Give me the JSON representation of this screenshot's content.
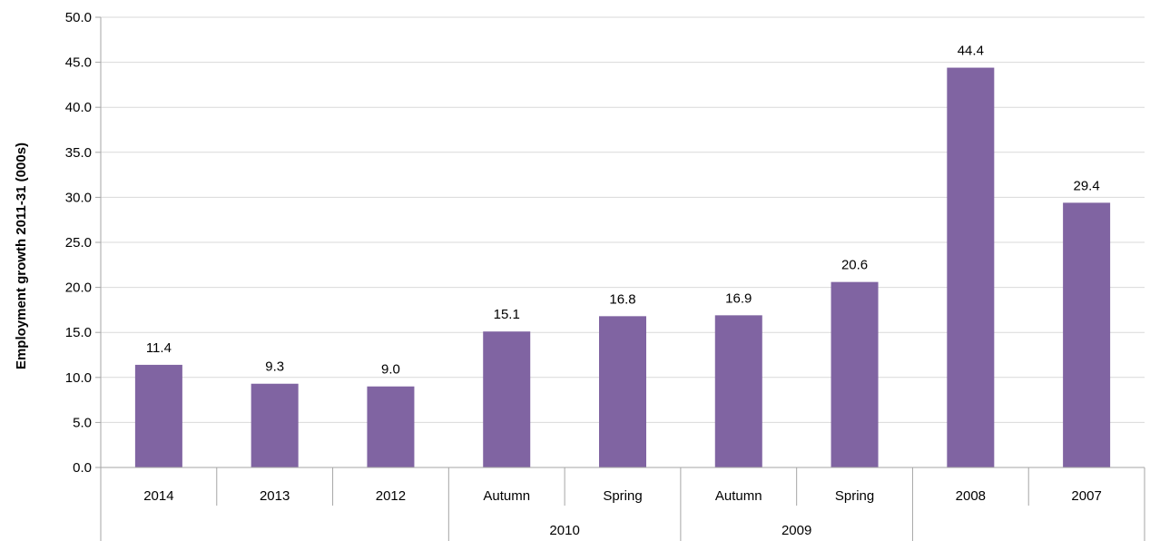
{
  "chart_data": {
    "type": "bar",
    "ylabel": "Employment growth 2011-31 (000s)",
    "xlabel": "",
    "ylim": [
      0,
      50
    ],
    "ytick_step": 5,
    "ytick_labels": [
      "0.0",
      "5.0",
      "10.0",
      "15.0",
      "20.0",
      "25.0",
      "30.0",
      "35.0",
      "40.0",
      "45.0",
      "50.0"
    ],
    "categories": [
      "2014",
      "2013",
      "2012",
      "Autumn",
      "Spring",
      "Autumn",
      "Spring",
      "2008",
      "2007"
    ],
    "values": [
      11.4,
      9.3,
      9.0,
      15.1,
      16.8,
      16.9,
      20.6,
      44.4,
      29.4
    ],
    "value_labels": [
      "11.4",
      "9.3",
      "9.0",
      "15.1",
      "16.8",
      "16.9",
      "20.6",
      "44.4",
      "29.4"
    ],
    "groups": [
      {
        "label": "",
        "start": 0,
        "end": 2
      },
      {
        "label": "2010",
        "start": 3,
        "end": 4
      },
      {
        "label": "2009",
        "start": 5,
        "end": 6
      },
      {
        "label": "",
        "start": 7,
        "end": 8
      }
    ],
    "bar_color": "#8064A2",
    "grid": true,
    "grid_color": "#D9D9D9",
    "axis_color": "#A6A6A6",
    "legend": "none"
  }
}
